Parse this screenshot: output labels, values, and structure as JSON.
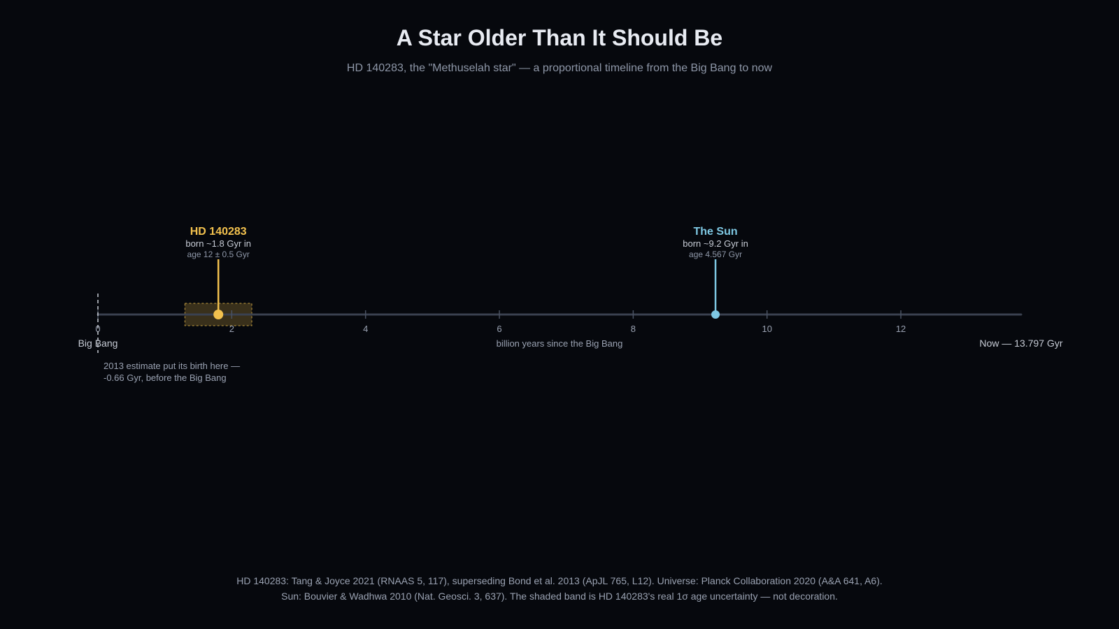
{
  "header": {
    "title": "A Star Older Than It Should Be",
    "subtitle": "HD 140283, the \"Methuselah star\" — a proportional timeline from the Big Bang to now"
  },
  "chart_data": {
    "type": "timeline",
    "xlabel": "billion years since the Big Bang",
    "xlim": [
      0,
      13.797
    ],
    "ticks": [
      0,
      2,
      4,
      6,
      8,
      10,
      12
    ],
    "grid": false,
    "start_label": "Big Bang",
    "end_label": "Now — 13.797 Gyr",
    "events": [
      {
        "id": "hd140283",
        "name": "HD 140283",
        "birth_gyr": 1.8,
        "band": [
          1.3,
          2.3
        ],
        "detail": "born ~1.8 Gyr in",
        "age_text": "age 12 ± 0.5 Gyr",
        "color": "#f2c14e"
      },
      {
        "id": "sun",
        "name": "The Sun",
        "birth_gyr": 9.23,
        "detail": "born ~9.2 Gyr in",
        "age_text": "age 4.567 Gyr",
        "color": "#7ec8e3"
      }
    ],
    "annotation": {
      "x_gyr": 0,
      "line1": "2013 estimate put its birth here —",
      "line2": "-0.66 Gyr, before the Big Bang"
    }
  },
  "footer": {
    "line1": "HD 140283: Tang & Joyce 2021 (RNAAS 5, 117), superseding Bond et al. 2013 (ApJL 765, L12). Universe: Planck Collaboration 2020 (A&A 641, A6).",
    "line2": "Sun: Bouvier & Wadhwa 2010 (Nat. Geosci. 3, 637). The shaded band is HD 140283's real 1σ age uncertainty — not decoration."
  },
  "colors": {
    "background": "#06080d",
    "axis": "#3a4150",
    "hd140283": "#f2c14e",
    "sun": "#7ec8e3"
  }
}
